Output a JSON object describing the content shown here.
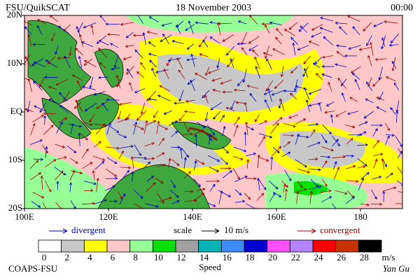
{
  "header": {
    "left": "FSU/QuikSCAT",
    "center": "18 November 2003",
    "right": "00:00"
  },
  "map": {
    "lonlim": [
      100,
      190
    ],
    "latlim": [
      -20,
      20
    ],
    "lon_ticks": [
      {
        "value": 100,
        "label": "100E"
      },
      {
        "value": 120,
        "label": "120E"
      },
      {
        "value": 140,
        "label": "140E"
      },
      {
        "value": 160,
        "label": "160E"
      },
      {
        "value": 180,
        "label": "180"
      }
    ],
    "lat_ticks": [
      {
        "value": 20,
        "label": "20N"
      },
      {
        "value": 10,
        "label": "10N"
      },
      {
        "value": 0,
        "label": "EQ"
      },
      {
        "value": -10,
        "label": "10S"
      },
      {
        "value": -20,
        "label": "20S"
      }
    ]
  },
  "legend": {
    "divergent": "divergent",
    "scale": "scale",
    "scale_value": "10 m/s",
    "convergent": "convergent"
  },
  "colorbar": {
    "label": "Speed",
    "unit": "m/s",
    "ticks": [
      0,
      2,
      4,
      6,
      8,
      10,
      12,
      14,
      16,
      18,
      20,
      22,
      24,
      26,
      28
    ],
    "colors": [
      "#ffffff",
      "#c8c8c8",
      "#ffff00",
      "#ffc8c8",
      "#96ff96",
      "#00e000",
      "#a0a0a0",
      "#00b4b4",
      "#3c8cff",
      "#0000d0",
      "#ff50ff",
      "#b482ff",
      "#ff0000",
      "#c83200",
      "#000000"
    ]
  },
  "footer": {
    "left": "COAPS-FSU",
    "right": "Yan Gu"
  }
}
